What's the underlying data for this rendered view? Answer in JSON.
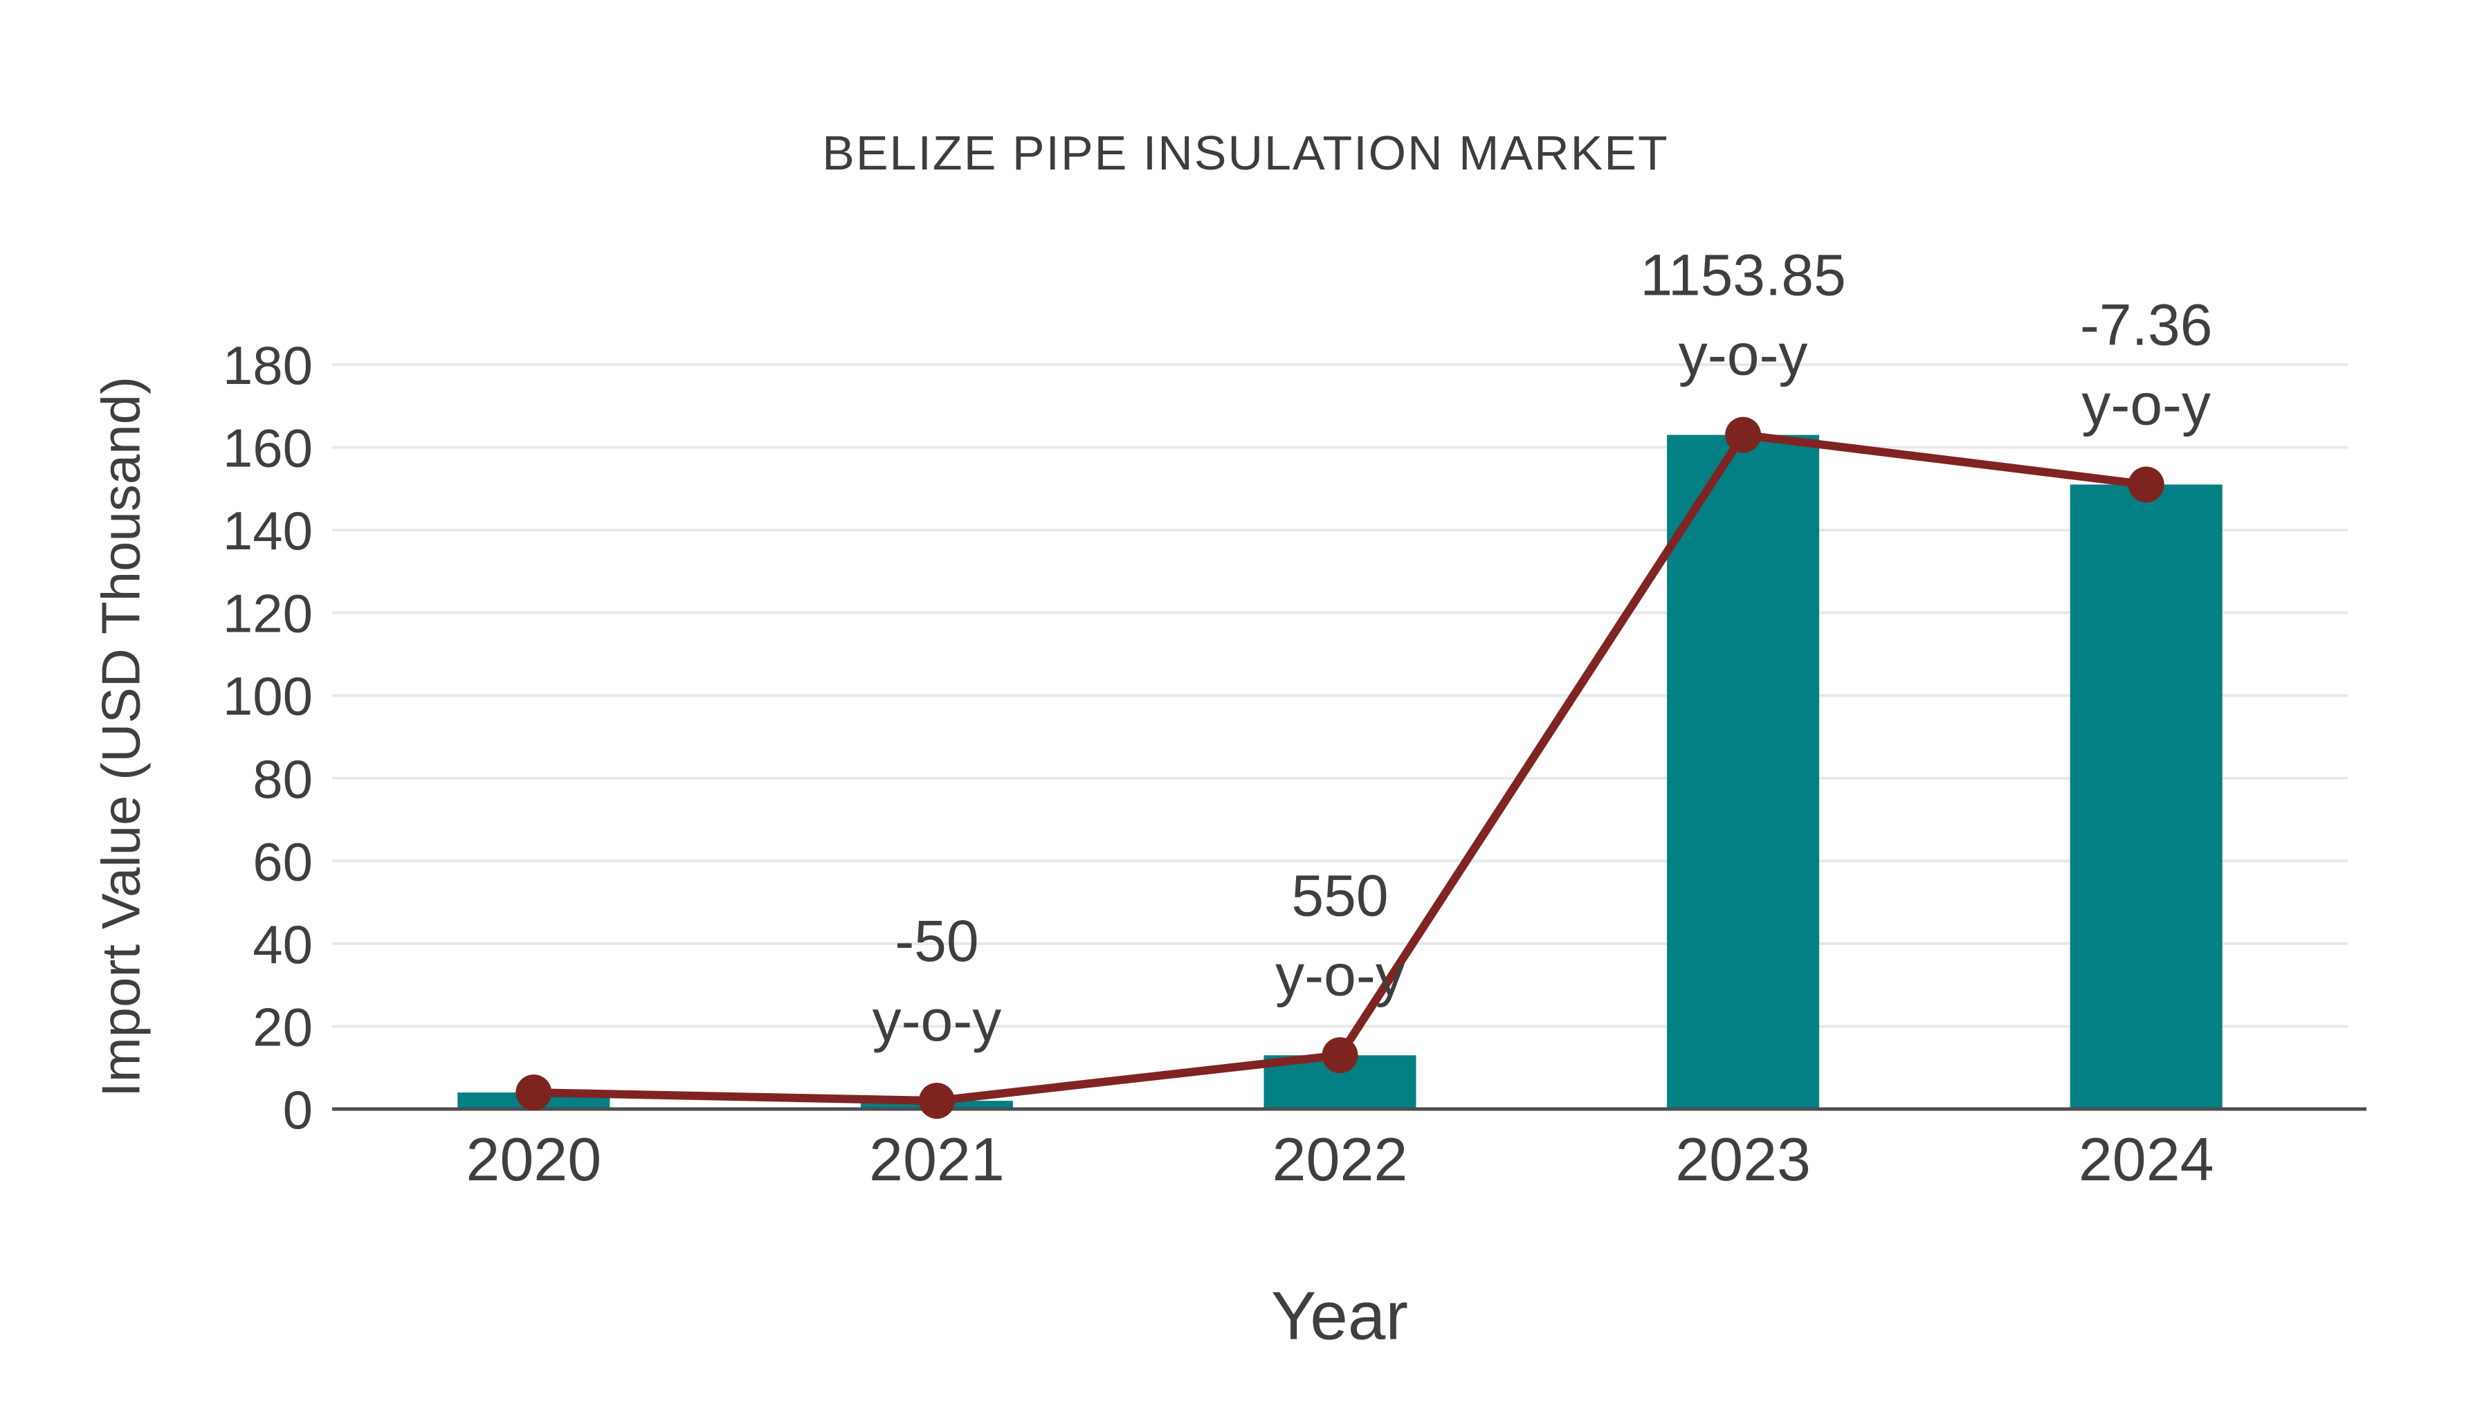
{
  "chart_data": {
    "type": "bar",
    "title": "BELIZE PIPE INSULATION MARKET",
    "xlabel": "Year",
    "ylabel": "Import Value (USD Thousand)",
    "categories": [
      "2020",
      "2021",
      "2022",
      "2023",
      "2024"
    ],
    "series": [
      {
        "name": "import-value-bars",
        "type": "bar",
        "values": [
          4,
          2,
          13,
          163,
          151
        ]
      },
      {
        "name": "import-value-line",
        "type": "line",
        "values": [
          4,
          2,
          13,
          163,
          151
        ]
      }
    ],
    "annotations": [
      {
        "category": "2021",
        "value_text": "-50",
        "suffix_text": "y-o-y"
      },
      {
        "category": "2022",
        "value_text": "550",
        "suffix_text": "y-o-y"
      },
      {
        "category": "2023",
        "value_text": "1153.85",
        "suffix_text": "y-o-y"
      },
      {
        "category": "2024",
        "value_text": "-7.36",
        "suffix_text": "y-o-y"
      }
    ],
    "yticks": [
      0,
      20,
      40,
      60,
      80,
      100,
      120,
      140,
      160,
      180
    ],
    "ylim": [
      0,
      180
    ],
    "grid": "horizontal",
    "legend": "none",
    "colors": {
      "bar": "#028083",
      "line": "#802423",
      "marker": "#7e2420",
      "grid": "#e8e8e8",
      "axis": "#4d4d4d",
      "text": "#3f3f3f",
      "title": "#3d3d3d",
      "background": "#ffffff"
    }
  }
}
